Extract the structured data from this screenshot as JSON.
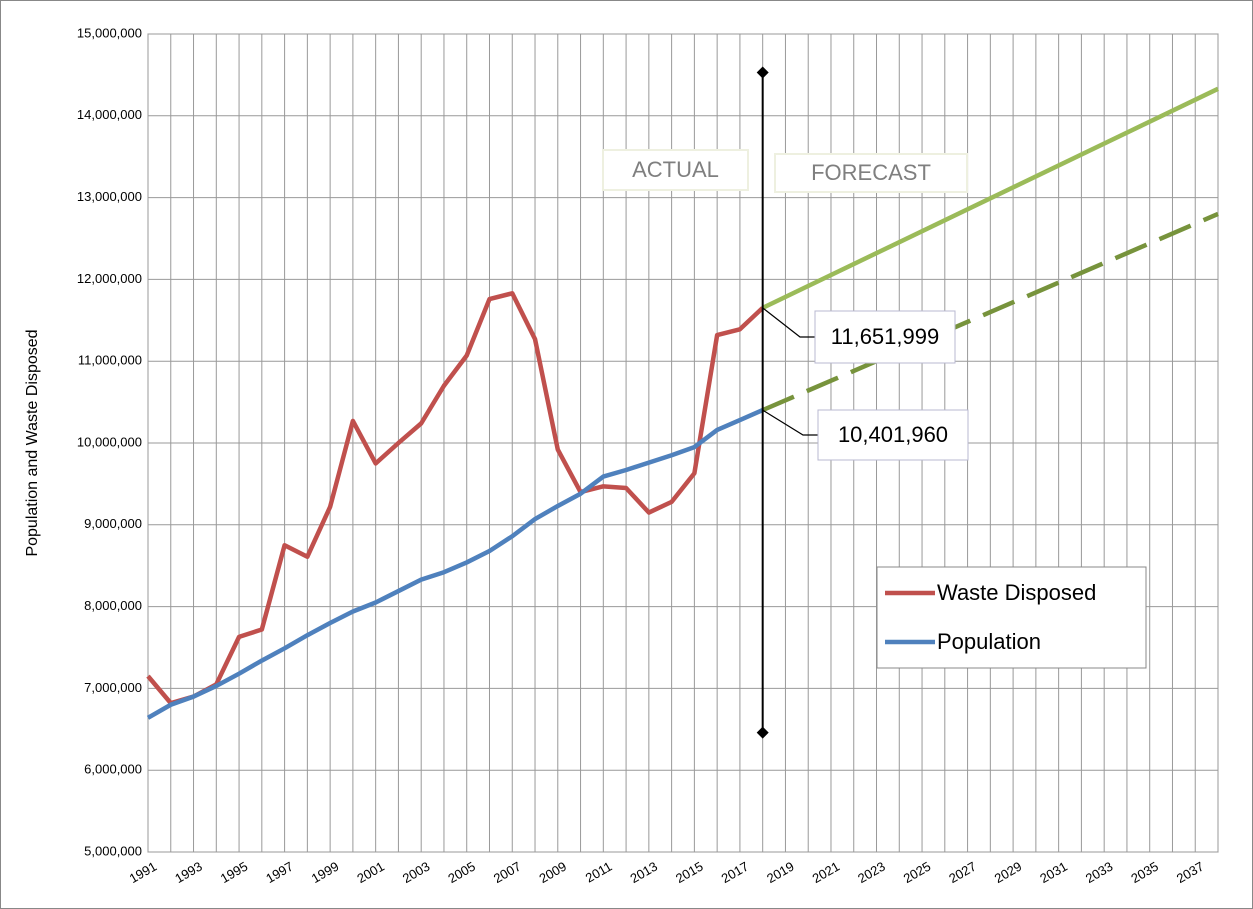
{
  "chart_data": {
    "type": "line",
    "y_label": "Population and Waste Disposed",
    "x": [
      1991,
      1992,
      1993,
      1994,
      1995,
      1996,
      1997,
      1998,
      1999,
      2000,
      2001,
      2002,
      2003,
      2004,
      2005,
      2006,
      2007,
      2008,
      2009,
      2010,
      2011,
      2012,
      2013,
      2014,
      2015,
      2016,
      2017,
      2018
    ],
    "xlim": [
      1991,
      2038
    ],
    "xticks": [
      1991,
      1993,
      1995,
      1997,
      1999,
      2001,
      2003,
      2005,
      2007,
      2009,
      2011,
      2013,
      2015,
      2017,
      2019,
      2021,
      2023,
      2025,
      2027,
      2029,
      2031,
      2033,
      2035,
      2037
    ],
    "xminorticks": [
      1992,
      1994,
      1996,
      1998,
      2000,
      2002,
      2004,
      2006,
      2008,
      2010,
      2012,
      2014,
      2016,
      2018,
      2020,
      2022,
      2024,
      2026,
      2028,
      2030,
      2032,
      2034,
      2036,
      2038
    ],
    "ylim": [
      5000000,
      15000000
    ],
    "yticks": [
      {
        "value": 5000000,
        "label": "5,000,000"
      },
      {
        "value": 6000000,
        "label": "6,000,000"
      },
      {
        "value": 7000000,
        "label": "7,000,000"
      },
      {
        "value": 8000000,
        "label": "8,000,000"
      },
      {
        "value": 9000000,
        "label": "9,000,000"
      },
      {
        "value": 10000000,
        "label": "10,000,000"
      },
      {
        "value": 11000000,
        "label": "11,000,000"
      },
      {
        "value": 12000000,
        "label": "12,000,000"
      },
      {
        "value": 13000000,
        "label": "13,000,000"
      },
      {
        "value": 14000000,
        "label": "14,000,000"
      },
      {
        "value": 15000000,
        "label": "15,000,000"
      }
    ],
    "grid": true,
    "legend": "lower right",
    "series": [
      {
        "name": "Waste Disposed",
        "color": "#c0504d",
        "values": [
          7150000,
          6820000,
          6900000,
          7050000,
          7630000,
          7720000,
          8750000,
          8610000,
          9220000,
          10270000,
          9750000,
          10000000,
          10240000,
          10700000,
          11070000,
          11760000,
          11830000,
          11270000,
          9920000,
          9400000,
          9470000,
          9450000,
          9150000,
          9280000,
          9630000,
          11320000,
          11390000,
          11651999
        ]
      },
      {
        "name": "Population",
        "color": "#4f81bd",
        "values": [
          6640000,
          6800000,
          6900000,
          7030000,
          7180000,
          7340000,
          7490000,
          7650000,
          7800000,
          7940000,
          8050000,
          8190000,
          8330000,
          8420000,
          8540000,
          8680000,
          8860000,
          9070000,
          9230000,
          9380000,
          9590000,
          9670000,
          9760000,
          9850000,
          9950000,
          10160000,
          10280000,
          10401960
        ]
      },
      {
        "color": "#9bbb59",
        "x": [
          2018,
          2038
        ],
        "values": [
          11651999,
          14330000
        ]
      },
      {
        "color": "#77933c",
        "dashed": true,
        "x": [
          2018,
          2038
        ],
        "values": [
          10401960,
          12800000
        ]
      }
    ],
    "divider": {
      "x": 2018,
      "y": [
        6460000,
        14530000
      ]
    },
    "regions": [
      "ACTUAL",
      "FORECAST"
    ],
    "annotations": [
      {
        "text": "11,651,999",
        "x": 2018,
        "y": 11651999
      },
      {
        "text": "10,401,960",
        "x": 2018,
        "y": 10401960
      }
    ]
  }
}
